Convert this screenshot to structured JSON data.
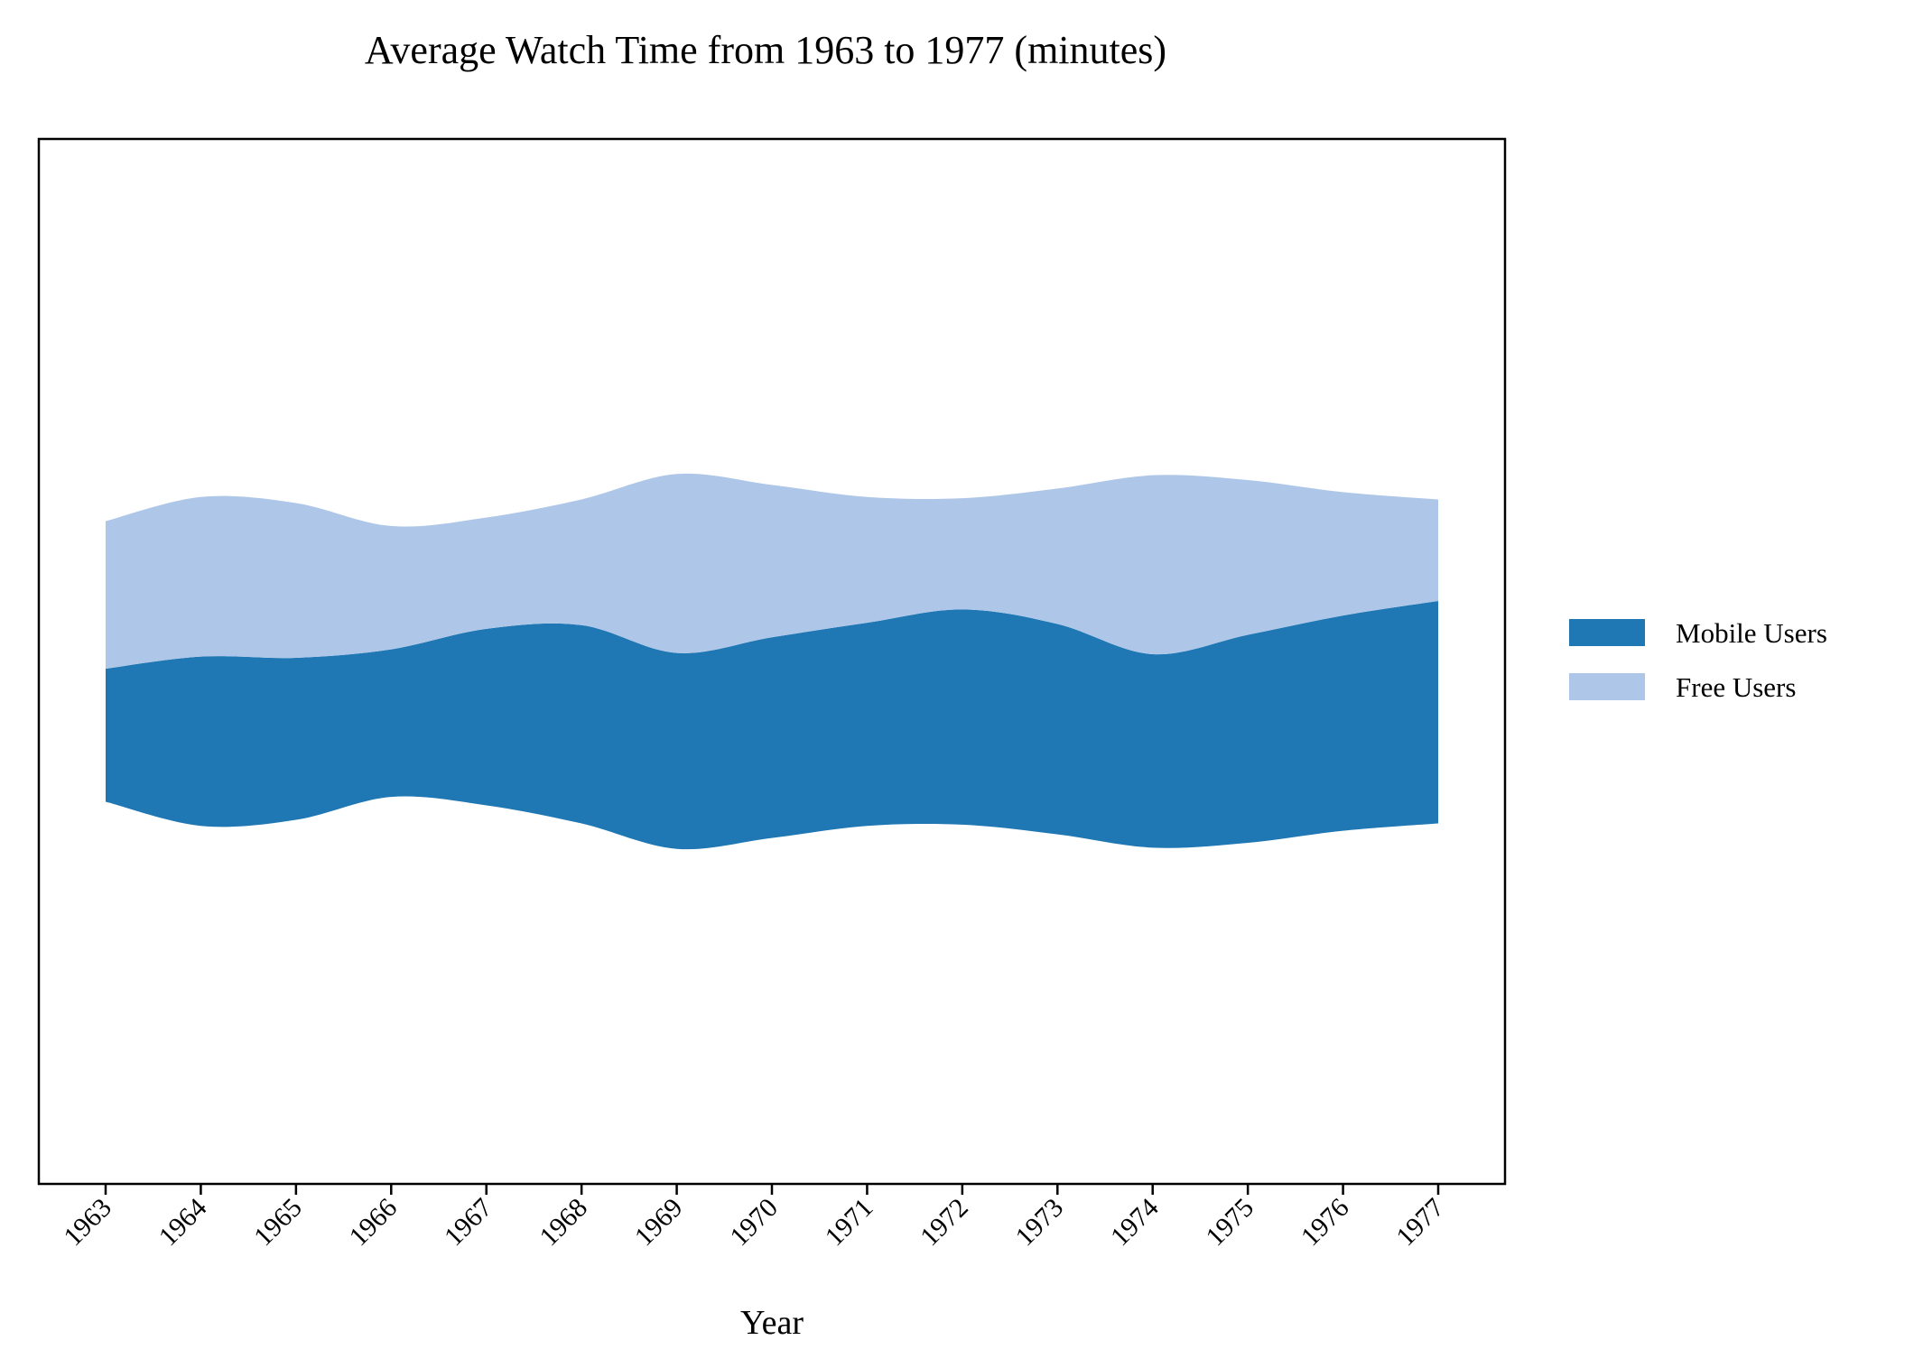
{
  "chart_data": {
    "type": "area",
    "subtype": "streamgraph",
    "title": "Average Watch Time from 1963 to 1977 (minutes)",
    "xlabel": "Year",
    "ylabel": "",
    "x": [
      "1963",
      "1964",
      "1965",
      "1966",
      "1967",
      "1968",
      "1969",
      "1970",
      "1971",
      "1972",
      "1973",
      "1974",
      "1975",
      "1976",
      "1977"
    ],
    "y_ticks_visible": false,
    "grid": false,
    "legend_position": "right",
    "series": [
      {
        "name": "Mobile Users",
        "color": "#1f77b4",
        "values": [
          55,
          70,
          67,
          61,
          73,
          82,
          81,
          83,
          84,
          89,
          87,
          80,
          86,
          89,
          92
        ]
      },
      {
        "name": "Free Users",
        "color": "#aec7e8",
        "values": [
          61,
          66,
          64,
          51,
          46,
          52,
          74,
          63,
          52,
          46,
          56,
          74,
          64,
          51,
          42
        ]
      }
    ]
  }
}
